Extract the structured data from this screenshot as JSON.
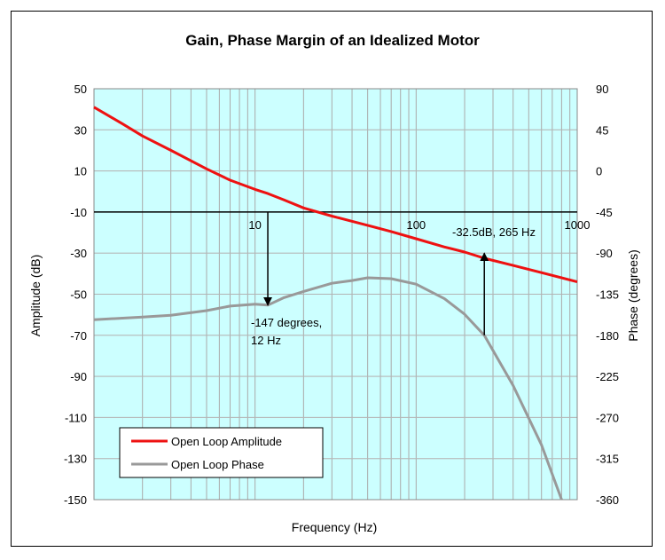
{
  "chart_data": {
    "type": "line",
    "title": "Gain, Phase Margin of an Idealized Motor",
    "xlabel": "Frequency (Hz)",
    "ylabel": "Amplitude (dB)",
    "y2label": "Phase (degrees)",
    "x_scale": "log",
    "xlim": [
      1,
      1000
    ],
    "ylim": [
      -150,
      50
    ],
    "y2lim": [
      -360,
      90
    ],
    "x_tick_labels": [
      "10",
      "100",
      "1000"
    ],
    "x_ticks": [
      10,
      100,
      1000
    ],
    "y_ticks": [
      50,
      30,
      10,
      -10,
      -30,
      -50,
      -70,
      -90,
      -110,
      -130,
      -150
    ],
    "y2_ticks": [
      90,
      45,
      0,
      -45,
      -90,
      -135,
      -180,
      -225,
      -270,
      -315,
      -360
    ],
    "grid": true,
    "plot_background": "#ccffff",
    "legend_position": "bottom-left",
    "series": [
      {
        "name": "Open Loop Amplitude",
        "axis": "left",
        "color": "#ee1111",
        "x": [
          1,
          1.5,
          2,
          3,
          5,
          7,
          10,
          12,
          15,
          20,
          30,
          50,
          70,
          100,
          150,
          200,
          265,
          400,
          600,
          1000
        ],
        "y": [
          41,
          33,
          27,
          20,
          11,
          5.5,
          1,
          -1,
          -4,
          -8,
          -12,
          -16.5,
          -19.5,
          -23,
          -27,
          -29.5,
          -32.5,
          -36,
          -39.5,
          -44
        ]
      },
      {
        "name": "Open Loop Phase",
        "axis": "right",
        "color": "#999999",
        "x": [
          1,
          2,
          3,
          5,
          7,
          10,
          12,
          15,
          20,
          30,
          40,
          50,
          70,
          100,
          150,
          200,
          265,
          400,
          600,
          800
        ],
        "y": [
          -163,
          -160,
          -158,
          -153,
          -148,
          -146,
          -147,
          -139,
          -132,
          -123,
          -120,
          -117,
          -118,
          -124,
          -140,
          -157,
          -180,
          -235,
          -300,
          -360
        ]
      }
    ],
    "annotations": [
      {
        "text_lines": [
          "-147 degrees,",
          "12 Hz"
        ],
        "x": 12,
        "from_y2": -45,
        "to_y2": -147
      },
      {
        "text_lines": [
          "-32.5dB, 265 Hz"
        ],
        "x": 265,
        "from_y2": -180,
        "to_y2": -90
      }
    ],
    "crossover_line_y": -10
  }
}
